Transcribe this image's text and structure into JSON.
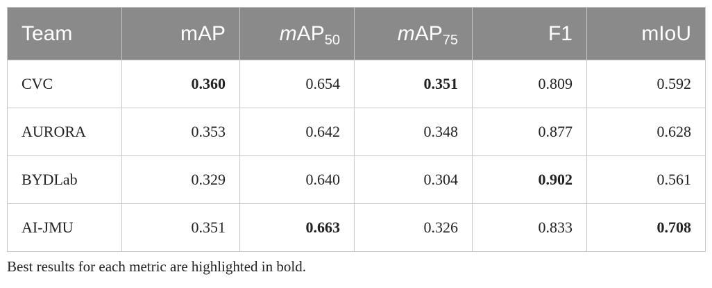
{
  "table": {
    "header": [
      {
        "roman": "Team"
      },
      {
        "roman": "mAP"
      },
      {
        "italic": "m",
        "roman": "AP",
        "sub": "50"
      },
      {
        "italic": "m",
        "roman": "AP",
        "sub": "75"
      },
      {
        "roman": "F1"
      },
      {
        "roman": "mIoU"
      }
    ],
    "rows": [
      {
        "cells": [
          "CVC",
          "0.360",
          "0.654",
          "0.351",
          "0.809",
          "0.592"
        ],
        "bold": [
          1,
          3
        ]
      },
      {
        "cells": [
          "AURORA",
          "0.353",
          "0.642",
          "0.348",
          "0.877",
          "0.628"
        ],
        "bold": []
      },
      {
        "cells": [
          "BYDLab",
          "0.329",
          "0.640",
          "0.304",
          "0.902",
          "0.561"
        ],
        "bold": [
          4
        ]
      },
      {
        "cells": [
          "AI-JMU",
          "0.351",
          "0.663",
          "0.326",
          "0.833",
          "0.708"
        ],
        "bold": [
          2,
          5
        ]
      }
    ],
    "caption": "Best results for each metric are highlighted in bold."
  }
}
